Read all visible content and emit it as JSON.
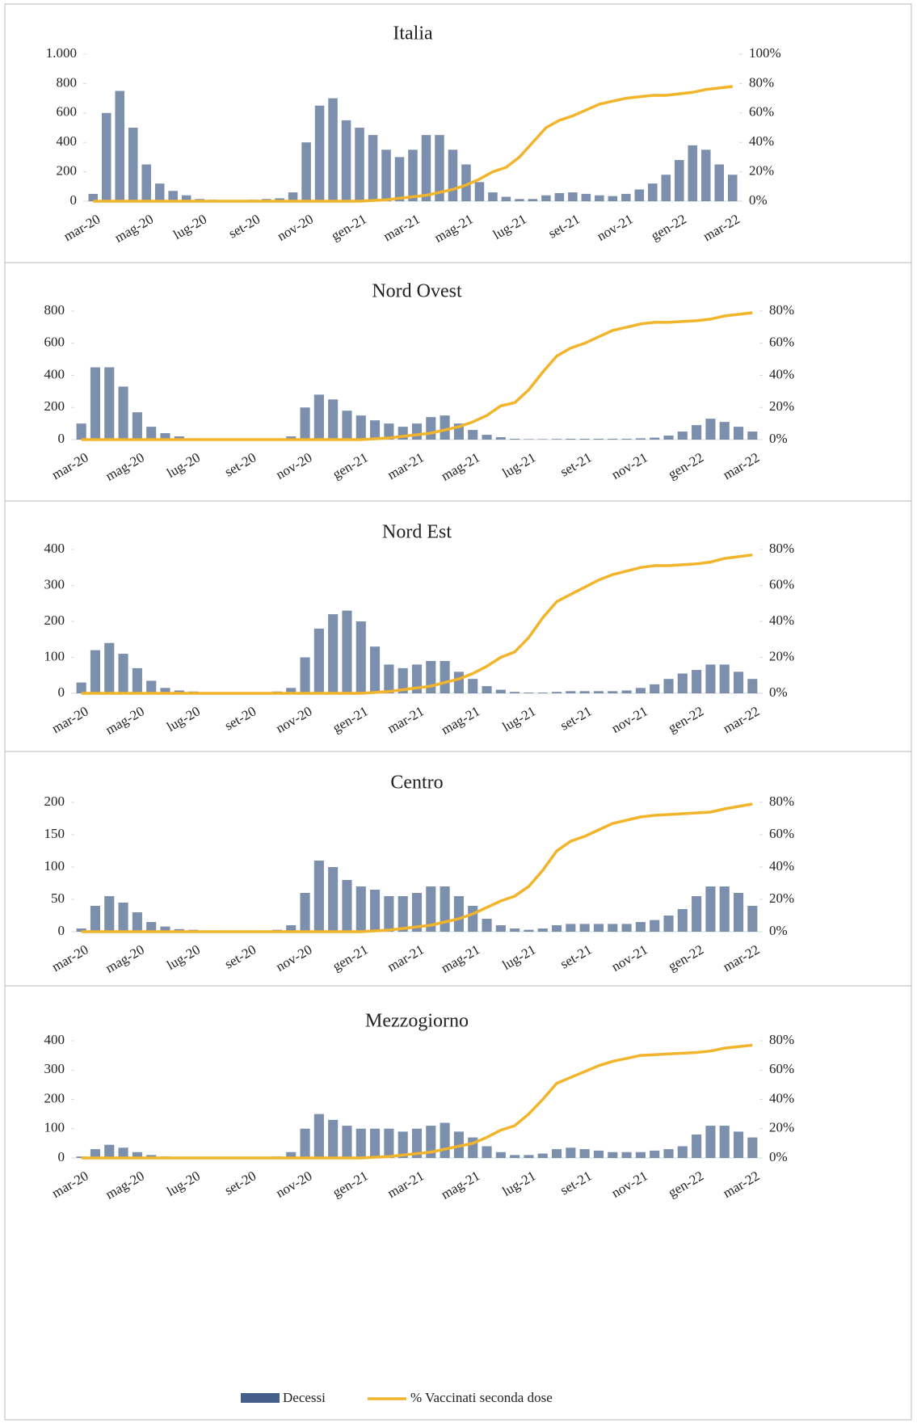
{
  "chart_data": [
    {
      "type": "bar_line",
      "title": "Italia",
      "categories": [
        "mar-20",
        null,
        null,
        null,
        "mag-20",
        null,
        null,
        null,
        "lug-20",
        null,
        null,
        null,
        "set-20",
        null,
        null,
        null,
        "nov-20",
        null,
        null,
        null,
        "gen-21",
        null,
        null,
        null,
        "mar-21",
        null,
        null,
        null,
        "mag-21",
        null,
        null,
        null,
        "lug-21",
        null,
        null,
        null,
        "set-21",
        null,
        null,
        null,
        "nov-21",
        null,
        null,
        null,
        "gen-22",
        null,
        null,
        null,
        "mar-22"
      ],
      "values": [
        50,
        600,
        750,
        500,
        250,
        120,
        70,
        40,
        15,
        10,
        8,
        5,
        10,
        15,
        20,
        60,
        400,
        650,
        700,
        550,
        500,
        450,
        350,
        300,
        350,
        450,
        450,
        350,
        250,
        130,
        60,
        30,
        15,
        15,
        40,
        55,
        60,
        50,
        40,
        35,
        50,
        80,
        120,
        180,
        280,
        380,
        350,
        250,
        180
      ],
      "line_values": [
        0,
        0,
        0,
        0,
        0,
        0,
        0,
        0,
        0,
        0,
        0,
        0,
        0,
        0,
        0,
        0,
        0,
        0,
        0,
        0,
        0,
        0.5,
        1,
        2,
        3,
        4,
        6,
        8,
        11,
        15,
        20,
        23,
        30,
        40,
        50,
        55,
        58,
        62,
        66,
        68,
        70,
        71,
        72,
        72,
        73,
        74,
        76,
        77,
        78
      ],
      "ylim": [
        0,
        1000
      ],
      "yticks": [
        0,
        200,
        400,
        600,
        800,
        {
          "value": 1000,
          "label": "1.000"
        }
      ],
      "y2lim": [
        0,
        100
      ],
      "y2ticks": [
        {
          "value": 0,
          "label": "0%"
        },
        {
          "value": 20,
          "label": "20%"
        },
        {
          "value": 40,
          "label": "40%"
        },
        {
          "value": 60,
          "label": "60%"
        },
        {
          "value": 80,
          "label": "80%"
        },
        {
          "value": 100,
          "label": "100%"
        }
      ]
    },
    {
      "type": "bar_line",
      "title": "Nord Ovest",
      "categories": [
        "mar-20",
        null,
        null,
        null,
        "mag-20",
        null,
        null,
        null,
        "lug-20",
        null,
        null,
        null,
        "set-20",
        null,
        null,
        null,
        "nov-20",
        null,
        null,
        null,
        "gen-21",
        null,
        null,
        null,
        "mar-21",
        null,
        null,
        null,
        "mag-21",
        null,
        null,
        null,
        "lug-21",
        null,
        null,
        null,
        "set-21",
        null,
        null,
        null,
        "nov-21",
        null,
        null,
        null,
        "gen-22",
        null,
        null,
        null,
        "mar-22"
      ],
      "values": [
        100,
        450,
        450,
        330,
        170,
        80,
        40,
        20,
        8,
        5,
        3,
        2,
        3,
        4,
        5,
        20,
        200,
        280,
        250,
        180,
        150,
        120,
        100,
        80,
        100,
        140,
        150,
        100,
        60,
        30,
        15,
        5,
        3,
        3,
        4,
        5,
        5,
        5,
        5,
        5,
        8,
        12,
        25,
        50,
        90,
        130,
        110,
        80,
        50
      ],
      "line_values": [
        0,
        0,
        0,
        0,
        0,
        0,
        0,
        0,
        0,
        0,
        0,
        0,
        0,
        0,
        0,
        0,
        0,
        0,
        0,
        0,
        0,
        0.5,
        1,
        2,
        3,
        4,
        6,
        8,
        11,
        15,
        21,
        23,
        31,
        42,
        52,
        57,
        60,
        64,
        68,
        70,
        72,
        73,
        73,
        73.5,
        74,
        75,
        77,
        78,
        79
      ],
      "ylim": [
        0,
        800
      ],
      "yticks": [
        0,
        200,
        400,
        600,
        800
      ],
      "y2lim": [
        0,
        80
      ],
      "y2ticks": [
        {
          "value": 0,
          "label": "0%"
        },
        {
          "value": 20,
          "label": "20%"
        },
        {
          "value": 40,
          "label": "40%"
        },
        {
          "value": 60,
          "label": "60%"
        },
        {
          "value": 80,
          "label": "80%"
        }
      ]
    },
    {
      "type": "bar_line",
      "title": "Nord Est",
      "categories": [
        "mar-20",
        null,
        null,
        null,
        "mag-20",
        null,
        null,
        null,
        "lug-20",
        null,
        null,
        null,
        "set-20",
        null,
        null,
        null,
        "nov-20",
        null,
        null,
        null,
        "gen-21",
        null,
        null,
        null,
        "mar-21",
        null,
        null,
        null,
        "mag-21",
        null,
        null,
        null,
        "lug-21",
        null,
        null,
        null,
        "set-21",
        null,
        null,
        null,
        "nov-21",
        null,
        null,
        null,
        "gen-22",
        null,
        null,
        null,
        "mar-22"
      ],
      "values": [
        30,
        120,
        140,
        110,
        70,
        35,
        15,
        8,
        5,
        3,
        3,
        3,
        3,
        3,
        5,
        15,
        100,
        180,
        220,
        230,
        200,
        130,
        80,
        70,
        80,
        90,
        90,
        60,
        40,
        20,
        10,
        4,
        2,
        2,
        4,
        6,
        6,
        6,
        6,
        8,
        15,
        25,
        40,
        55,
        65,
        80,
        80,
        60,
        40
      ],
      "line_values": [
        0,
        0,
        0,
        0,
        0,
        0,
        0,
        0,
        0,
        0,
        0,
        0,
        0,
        0,
        0,
        0,
        0,
        0,
        0,
        0,
        0,
        0.5,
        1,
        2,
        3,
        4,
        6,
        8,
        11,
        15,
        20,
        23,
        31,
        42,
        51,
        55,
        59,
        63,
        66,
        68,
        70,
        71,
        71,
        71.5,
        72,
        73,
        75,
        76,
        77
      ],
      "ylim": [
        0,
        400
      ],
      "yticks": [
        0,
        100,
        200,
        300,
        400
      ],
      "y2lim": [
        0,
        80
      ],
      "y2ticks": [
        {
          "value": 0,
          "label": "0%"
        },
        {
          "value": 20,
          "label": "20%"
        },
        {
          "value": 40,
          "label": "40%"
        },
        {
          "value": 60,
          "label": "60%"
        },
        {
          "value": 80,
          "label": "80%"
        }
      ]
    },
    {
      "type": "bar_line",
      "title": "Centro",
      "categories": [
        "mar-20",
        null,
        null,
        null,
        "mag-20",
        null,
        null,
        null,
        "lug-20",
        null,
        null,
        null,
        "set-20",
        null,
        null,
        null,
        "nov-20",
        null,
        null,
        null,
        "gen-21",
        null,
        null,
        null,
        "mar-21",
        null,
        null,
        null,
        "mag-21",
        null,
        null,
        null,
        "lug-21",
        null,
        null,
        null,
        "set-21",
        null,
        null,
        null,
        "nov-21",
        null,
        null,
        null,
        "gen-22",
        null,
        null,
        null,
        "mar-22"
      ],
      "values": [
        5,
        40,
        55,
        45,
        30,
        15,
        8,
        4,
        3,
        2,
        2,
        2,
        2,
        2,
        3,
        10,
        60,
        110,
        100,
        80,
        70,
        65,
        55,
        55,
        60,
        70,
        70,
        55,
        40,
        20,
        10,
        5,
        3,
        5,
        10,
        12,
        12,
        12,
        12,
        12,
        15,
        18,
        25,
        35,
        55,
        70,
        70,
        60,
        40
      ],
      "line_values": [
        0,
        0,
        0,
        0,
        0,
        0,
        0,
        0,
        0,
        0,
        0,
        0,
        0,
        0,
        0,
        0,
        0,
        0,
        0,
        0,
        0,
        0.5,
        1,
        2,
        3,
        4,
        6,
        8,
        11,
        15,
        19,
        22,
        28,
        38,
        50,
        56,
        59,
        63,
        67,
        69,
        71,
        72,
        72.5,
        73,
        73.5,
        74,
        76,
        77.5,
        79
      ],
      "ylim": [
        0,
        200
      ],
      "yticks": [
        0,
        50,
        100,
        150,
        200
      ],
      "y2lim": [
        0,
        80
      ],
      "y2ticks": [
        {
          "value": 0,
          "label": "0%"
        },
        {
          "value": 20,
          "label": "20%"
        },
        {
          "value": 40,
          "label": "40%"
        },
        {
          "value": 60,
          "label": "60%"
        },
        {
          "value": 80,
          "label": "80%"
        }
      ]
    },
    {
      "type": "bar_line",
      "title": "Mezzogiorno",
      "categories": [
        "mar-20",
        null,
        null,
        null,
        "mag-20",
        null,
        null,
        null,
        "lug-20",
        null,
        null,
        null,
        "set-20",
        null,
        null,
        null,
        "nov-20",
        null,
        null,
        null,
        "gen-21",
        null,
        null,
        null,
        "mar-21",
        null,
        null,
        null,
        "mag-21",
        null,
        null,
        null,
        "lug-21",
        null,
        null,
        null,
        "set-21",
        null,
        null,
        null,
        "nov-21",
        null,
        null,
        null,
        "gen-22",
        null,
        null,
        null,
        "mar-22"
      ],
      "values": [
        5,
        30,
        45,
        35,
        20,
        10,
        5,
        3,
        3,
        2,
        2,
        2,
        2,
        3,
        5,
        20,
        100,
        150,
        130,
        110,
        100,
        100,
        100,
        90,
        100,
        110,
        120,
        90,
        70,
        40,
        20,
        10,
        10,
        15,
        30,
        35,
        30,
        25,
        20,
        20,
        20,
        25,
        30,
        40,
        80,
        110,
        110,
        90,
        70
      ],
      "line_values": [
        0,
        0,
        0,
        0,
        0,
        0,
        0,
        0,
        0,
        0,
        0,
        0,
        0,
        0,
        0,
        0,
        0,
        0,
        0,
        0,
        0,
        0.5,
        1,
        2,
        3,
        4,
        6,
        8,
        10,
        14,
        19,
        22,
        30,
        40,
        51,
        55,
        59,
        63,
        66,
        68,
        70,
        70.5,
        71,
        71.5,
        72,
        73,
        75,
        76,
        77
      ],
      "ylim": [
        0,
        400
      ],
      "yticks": [
        0,
        100,
        200,
        300,
        400
      ],
      "y2lim": [
        0,
        80
      ],
      "y2ticks": [
        {
          "value": 0,
          "label": "0%"
        },
        {
          "value": 20,
          "label": "20%"
        },
        {
          "value": 40,
          "label": "40%"
        },
        {
          "value": 60,
          "label": "60%"
        },
        {
          "value": 80,
          "label": "80%"
        }
      ]
    }
  ],
  "legend": [
    {
      "name": "Decessi",
      "color": "#44608a"
    },
    {
      "name": "% Vaccinati seconda dose",
      "color": "#f2b42a"
    }
  ]
}
